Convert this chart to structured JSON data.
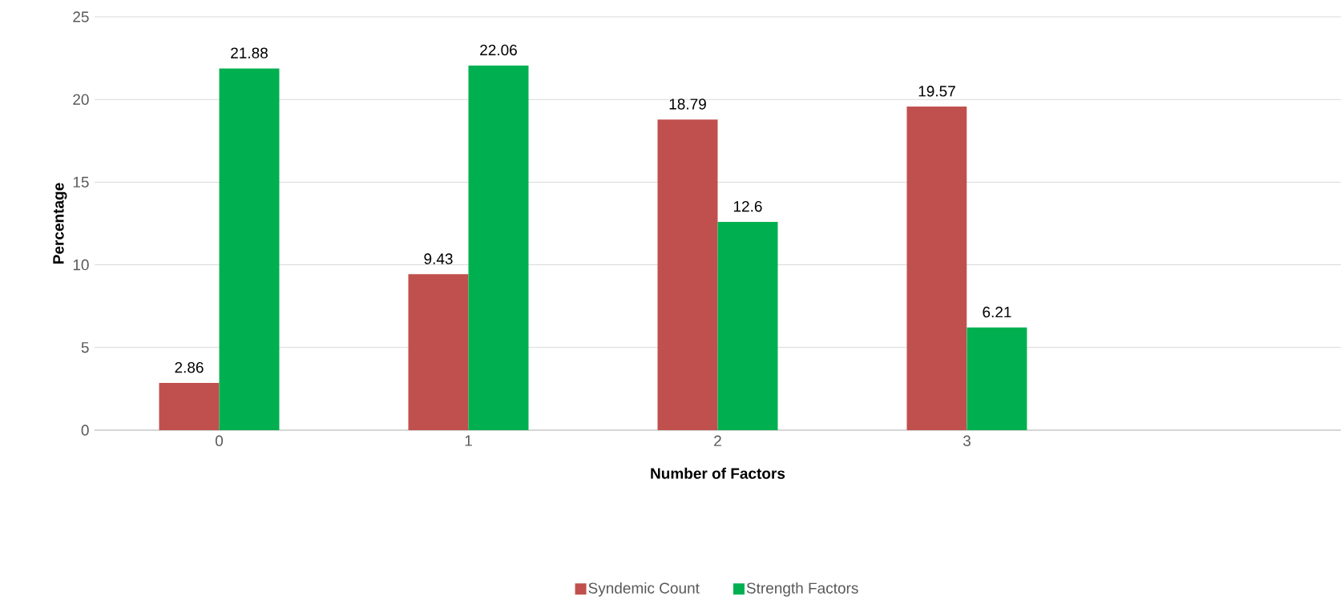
{
  "chart_data": {
    "type": "bar",
    "xlabel": "Number of Factors",
    "ylabel": "Percentage",
    "categories": [
      "0",
      "1",
      "2",
      "3",
      null
    ],
    "series": [
      {
        "name": "Syndemic Count",
        "color": "#c0504d",
        "values": [
          2.86,
          9.43,
          18.79,
          19.57,
          null
        ]
      },
      {
        "name": "Strength Factors",
        "color": "#00b050",
        "values": [
          21.88,
          22.06,
          12.6,
          6.21,
          null
        ]
      }
    ],
    "ylim": [
      0,
      25
    ],
    "yticks": [
      0,
      5,
      10,
      15,
      20,
      25
    ],
    "grid": "y",
    "legend": "bottom",
    "data_labels": true
  }
}
